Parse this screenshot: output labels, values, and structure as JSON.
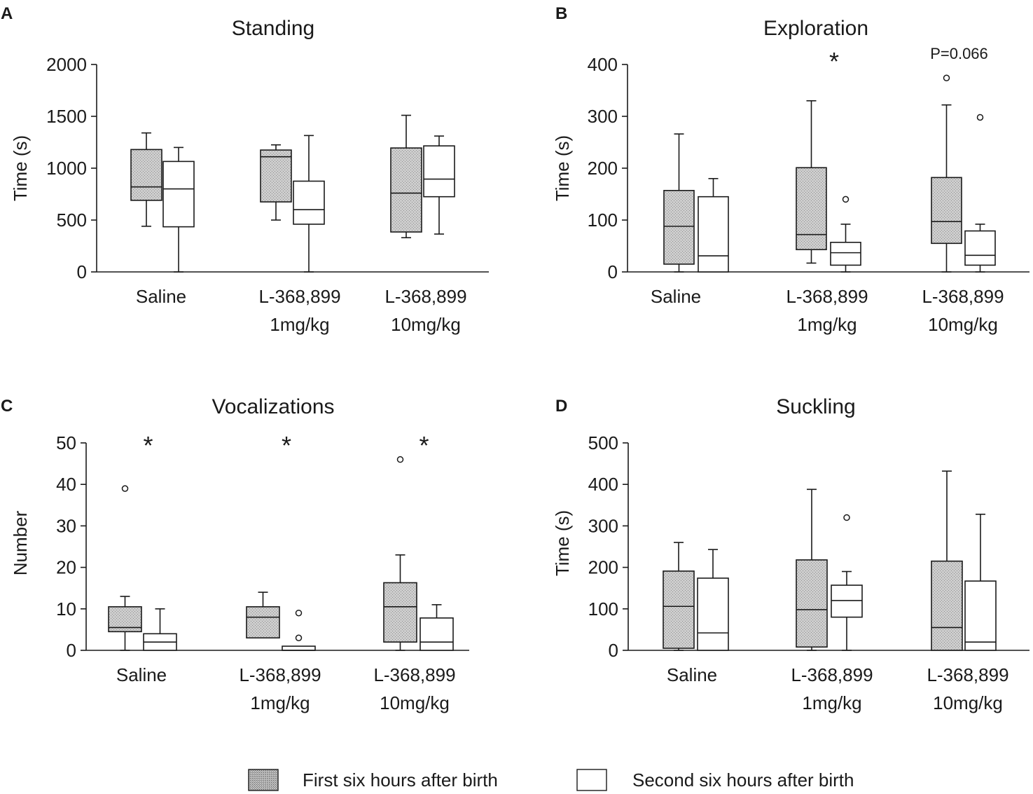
{
  "chart_data": [
    {
      "panel": "A",
      "type": "box",
      "title": "Standing",
      "ylabel": "Time (s)",
      "ylim": [
        0,
        2000
      ],
      "yticks": [
        0,
        500,
        1000,
        1500,
        2000
      ],
      "categories": [
        {
          "lines": [
            "Saline"
          ]
        },
        {
          "lines": [
            "L-368,899",
            "1mg/kg"
          ]
        },
        {
          "lines": [
            "L-368,899",
            "10mg/kg"
          ]
        }
      ],
      "series": [
        {
          "legend_index": 0,
          "boxes": [
            {
              "min": 440,
              "q1": 690,
              "median": 820,
              "q3": 1180,
              "max": 1340,
              "outliers": []
            },
            {
              "min": 500,
              "q1": 675,
              "median": 1110,
              "q3": 1175,
              "max": 1225,
              "outliers": []
            },
            {
              "min": 330,
              "q1": 385,
              "median": 760,
              "q3": 1195,
              "max": 1510,
              "outliers": []
            }
          ]
        },
        {
          "legend_index": 1,
          "boxes": [
            {
              "min": 0,
              "q1": 435,
              "median": 800,
              "q3": 1065,
              "max": 1200,
              "outliers": []
            },
            {
              "min": 0,
              "q1": 460,
              "median": 600,
              "q3": 875,
              "max": 1315,
              "outliers": []
            },
            {
              "min": 365,
              "q1": 725,
              "median": 895,
              "q3": 1215,
              "max": 1310,
              "outliers": []
            }
          ]
        }
      ],
      "annotations": []
    },
    {
      "panel": "B",
      "type": "box",
      "title": "Exploration",
      "ylabel": "Time (s)",
      "ylim": [
        0,
        400
      ],
      "yticks": [
        0,
        100,
        200,
        300,
        400
      ],
      "categories": [
        {
          "lines": [
            "Saline"
          ]
        },
        {
          "lines": [
            "L-368,899",
            "1mg/kg"
          ]
        },
        {
          "lines": [
            "L-368,899",
            "10mg/kg"
          ]
        }
      ],
      "series": [
        {
          "legend_index": 0,
          "boxes": [
            {
              "min": 0,
              "q1": 15,
              "median": 88,
              "q3": 157,
              "max": 266,
              "outliers": []
            },
            {
              "min": 17,
              "q1": 43,
              "median": 72,
              "q3": 201,
              "max": 330,
              "outliers": []
            },
            {
              "min": 0,
              "q1": 55,
              "median": 97,
              "q3": 182,
              "max": 322,
              "outliers": [
                374
              ]
            }
          ]
        },
        {
          "legend_index": 1,
          "boxes": [
            {
              "min": 0,
              "q1": 0,
              "median": 31,
              "q3": 145,
              "max": 180,
              "outliers": []
            },
            {
              "min": 0,
              "q1": 13,
              "median": 37,
              "q3": 57,
              "max": 92,
              "outliers": [
                140
              ]
            },
            {
              "min": 0,
              "q1": 13,
              "median": 32,
              "q3": 79,
              "max": 92,
              "outliers": [
                298
              ]
            }
          ]
        }
      ],
      "annotations": [
        {
          "category": 1,
          "text": "*"
        },
        {
          "category": 2,
          "text": "P=0.066"
        }
      ]
    },
    {
      "panel": "C",
      "type": "box",
      "title": "Vocalizations",
      "ylabel": "Number",
      "ylim": [
        0,
        50
      ],
      "yticks": [
        0,
        10,
        20,
        30,
        40,
        50
      ],
      "categories": [
        {
          "lines": [
            "Saline"
          ]
        },
        {
          "lines": [
            "L-368,899",
            "1mg/kg"
          ]
        },
        {
          "lines": [
            "L-368,899",
            "10mg/kg"
          ]
        }
      ],
      "series": [
        {
          "legend_index": 0,
          "boxes": [
            {
              "min": 0,
              "q1": 4.5,
              "median": 5.5,
              "q3": 10.5,
              "max": 13,
              "outliers": [
                39
              ]
            },
            {
              "min": 3,
              "q1": 3,
              "median": 8,
              "q3": 10.5,
              "max": 14,
              "outliers": []
            },
            {
              "min": 0,
              "q1": 2,
              "median": 10.5,
              "q3": 16.3,
              "max": 23,
              "outliers": [
                46
              ]
            }
          ]
        },
        {
          "legend_index": 1,
          "boxes": [
            {
              "min": 0,
              "q1": 0,
              "median": 2,
              "q3": 4,
              "max": 10,
              "outliers": []
            },
            {
              "min": 0,
              "q1": 0,
              "median": 0,
              "q3": 1,
              "max": 1,
              "outliers": [
                9,
                3
              ]
            },
            {
              "min": 0,
              "q1": 0,
              "median": 2,
              "q3": 7.8,
              "max": 11,
              "outliers": []
            }
          ]
        }
      ],
      "annotations": [
        {
          "category": 0,
          "text": "*"
        },
        {
          "category": 1,
          "text": "*"
        },
        {
          "category": 2,
          "text": "*"
        }
      ]
    },
    {
      "panel": "D",
      "type": "box",
      "title": "Suckling",
      "ylabel": "Time (s)",
      "ylim": [
        0,
        500
      ],
      "yticks": [
        0,
        100,
        200,
        300,
        400,
        500
      ],
      "categories": [
        {
          "lines": [
            "Saline"
          ]
        },
        {
          "lines": [
            "L-368,899",
            "1mg/kg"
          ]
        },
        {
          "lines": [
            "L-368,899",
            "10mg/kg"
          ]
        }
      ],
      "series": [
        {
          "legend_index": 0,
          "boxes": [
            {
              "min": 0,
              "q1": 5,
              "median": 106,
              "q3": 191,
              "max": 260,
              "outliers": []
            },
            {
              "min": 0,
              "q1": 8,
              "median": 98,
              "q3": 218,
              "max": 388,
              "outliers": []
            },
            {
              "min": 0,
              "q1": 0,
              "median": 55,
              "q3": 215,
              "max": 432,
              "outliers": []
            }
          ]
        },
        {
          "legend_index": 1,
          "boxes": [
            {
              "min": 0,
              "q1": 0,
              "median": 42,
              "q3": 174,
              "max": 243,
              "outliers": []
            },
            {
              "min": 0,
              "q1": 80,
              "median": 120,
              "q3": 157,
              "max": 190,
              "outliers": [
                320
              ]
            },
            {
              "min": 0,
              "q1": 0,
              "median": 20,
              "q3": 167,
              "max": 328,
              "outliers": []
            }
          ]
        }
      ],
      "annotations": []
    }
  ],
  "legend": {
    "items": [
      {
        "label": "First six hours after birth"
      },
      {
        "label": "Second six hours after birth"
      }
    ]
  },
  "colors": {
    "first_fill": "#cdcdcd",
    "first_dot": "#8e8e8e",
    "legend_fill": "#bdbdbd",
    "legend_dot": "#6a6a6a",
    "second_fill": "#ffffff",
    "stroke": "#1a1a1a"
  }
}
